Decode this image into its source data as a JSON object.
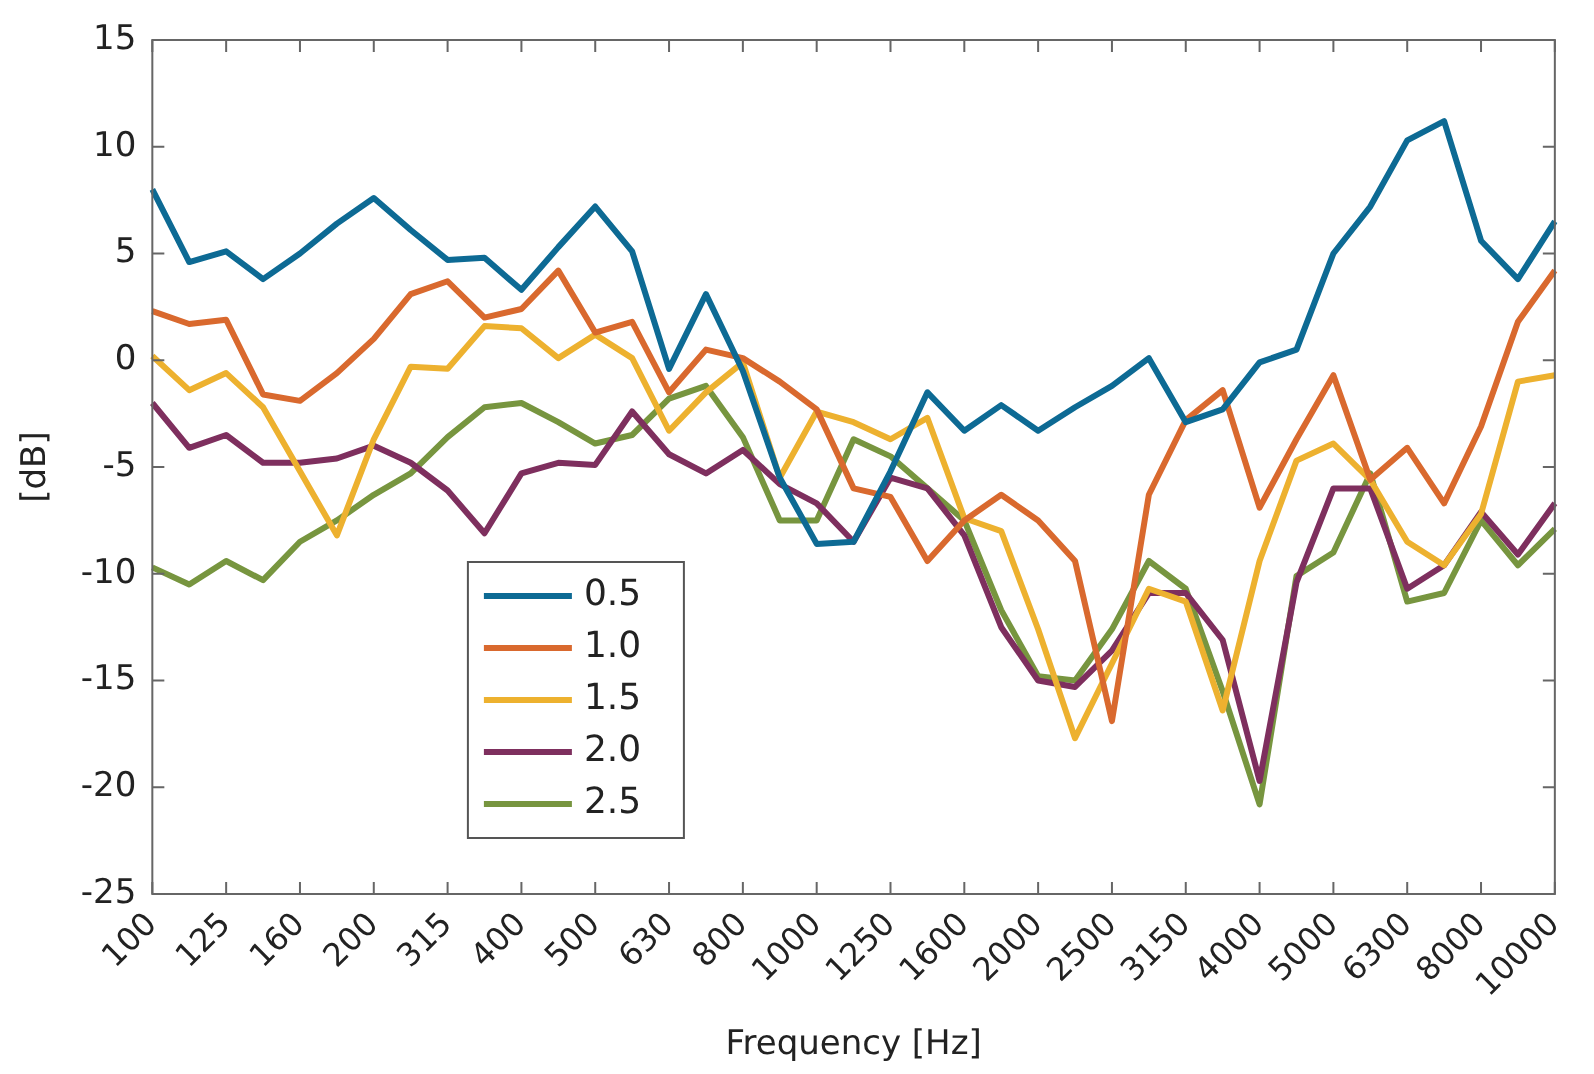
{
  "chart_data": {
    "type": "line",
    "xlabel": "Frequency [Hz]",
    "ylabel": "[dB]",
    "categories": [
      "100",
      null,
      "125",
      null,
      "160",
      null,
      "200",
      null,
      "315",
      null,
      "400",
      null,
      "500",
      null,
      "630",
      null,
      "800",
      null,
      "1000",
      null,
      "1250",
      null,
      "1600",
      null,
      "2000",
      null,
      "2500",
      null,
      "3150",
      null,
      "4000",
      null,
      "5000",
      null,
      "6300",
      null,
      "8000",
      null,
      "10000"
    ],
    "series": [
      {
        "name": "0.5",
        "color": "#0d6a94",
        "values": [
          8.0,
          4.6,
          5.1,
          3.8,
          5.0,
          6.4,
          7.6,
          6.1,
          4.7,
          4.8,
          3.3,
          5.3,
          7.2,
          5.1,
          -0.4,
          3.1,
          -0.5,
          -5.5,
          -8.6,
          -8.5,
          -5.2,
          -1.5,
          -3.3,
          -2.1,
          -3.3,
          -2.2,
          -1.2,
          0.1,
          -2.9,
          -2.3,
          -0.1,
          0.5,
          5.0,
          7.2,
          10.3,
          11.2,
          5.6,
          3.8,
          6.5
        ]
      },
      {
        "name": "1.0",
        "color": "#d9692e",
        "values": [
          2.3,
          1.7,
          1.9,
          -1.6,
          -1.9,
          -0.6,
          1.0,
          3.1,
          3.7,
          2.0,
          2.4,
          4.2,
          1.3,
          1.8,
          -1.5,
          0.5,
          0.1,
          -1.0,
          -2.3,
          -6.0,
          -6.4,
          -9.4,
          -7.5,
          -6.3,
          -7.5,
          -9.4,
          -16.9,
          -6.3,
          -2.8,
          -1.4,
          -6.9,
          -3.7,
          -0.7,
          -5.6,
          -4.1,
          -6.7,
          -3.1,
          1.8,
          4.2
        ]
      },
      {
        "name": "1.5",
        "color": "#edb12f",
        "values": [
          0.2,
          -1.4,
          -0.6,
          -2.2,
          -5.2,
          -8.2,
          -3.7,
          -0.3,
          -0.4,
          1.6,
          1.5,
          0.1,
          1.2,
          0.1,
          -3.3,
          -1.5,
          -0.1,
          -5.5,
          -2.4,
          -2.9,
          -3.7,
          -2.7,
          -7.4,
          -8.0,
          -12.6,
          -17.7,
          -14.2,
          -10.7,
          -11.3,
          -16.4,
          -9.4,
          -4.7,
          -3.9,
          -5.6,
          -8.5,
          -9.6,
          -7.2,
          -1.0,
          -0.7
        ]
      },
      {
        "name": "2.0",
        "color": "#7e2f5e",
        "values": [
          -2.0,
          -4.1,
          -3.5,
          -4.8,
          -4.8,
          -4.6,
          -4.0,
          -4.8,
          -6.1,
          -8.1,
          -5.3,
          -4.8,
          -4.9,
          -2.4,
          -4.4,
          -5.3,
          -4.2,
          -5.8,
          -6.7,
          -8.5,
          -5.5,
          -6.0,
          -8.2,
          -12.5,
          -15.0,
          -15.3,
          -13.6,
          -10.9,
          -10.9,
          -13.1,
          -19.7,
          -10.4,
          -6.0,
          -6.0,
          -10.7,
          -9.6,
          -7.1,
          -9.1,
          -6.7
        ]
      },
      {
        "name": "2.5",
        "color": "#77953f",
        "values": [
          -9.7,
          -10.5,
          -9.4,
          -10.3,
          -8.5,
          -7.5,
          -6.3,
          -5.3,
          -3.6,
          -2.2,
          -2.0,
          -2.9,
          -3.9,
          -3.5,
          -1.8,
          -1.2,
          -3.6,
          -7.5,
          -7.5,
          -3.7,
          -4.5,
          -6.0,
          -7.5,
          -11.7,
          -14.8,
          -15.0,
          -12.6,
          -9.4,
          -10.7,
          -15.5,
          -20.8,
          -10.1,
          -9.0,
          -5.3,
          -11.3,
          -10.9,
          -7.5,
          -9.6,
          -7.9
        ]
      }
    ],
    "ylim": [
      -25,
      15
    ],
    "yticks": [
      -25,
      -20,
      -15,
      -10,
      -5,
      0,
      5,
      10,
      15
    ],
    "legend": "bottom left",
    "marker": "none",
    "line_style": "solid"
  }
}
